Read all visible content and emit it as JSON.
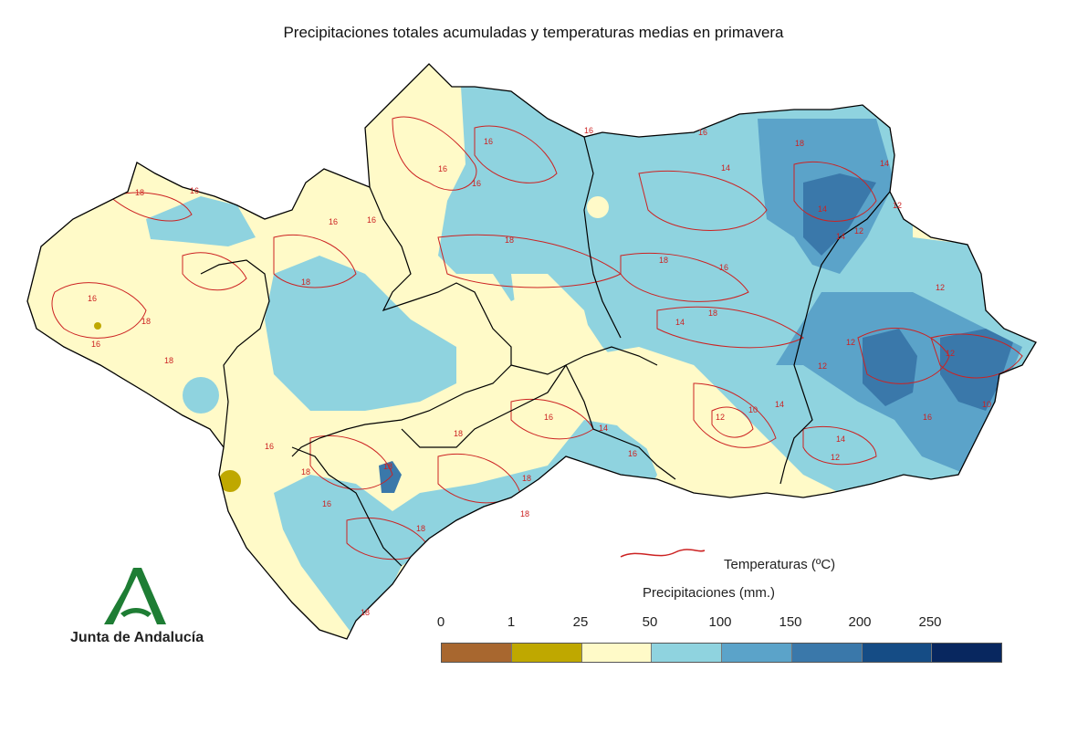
{
  "title": "Precipitaciones totales acumuladas y temperaturas medias en primavera",
  "legend": {
    "temperature_label": "Temperaturas (ºC)",
    "temperature_line_color": "#cc2222",
    "precipitation_label": "Precipitaciones (mm.)",
    "precipitation_ticks": [
      "0",
      "1",
      "25",
      "50",
      "100",
      "150",
      "200",
      "250"
    ],
    "precipitation_colors": [
      "#a8672f",
      "#bfa800",
      "#fffac8",
      "#8fd3df",
      "#5ba3c9",
      "#3a78aa",
      "#154c85",
      "#08275f"
    ]
  },
  "contour_labels": [
    "16",
    "16",
    "16",
    "18",
    "16",
    "16",
    "16",
    "16",
    "18",
    "16",
    "18",
    "18",
    "18",
    "18",
    "16",
    "14",
    "18",
    "14",
    "14",
    "14",
    "12",
    "12",
    "12",
    "12",
    "12",
    "10",
    "12",
    "14",
    "14",
    "16",
    "14",
    "12",
    "14",
    "12",
    "10",
    "18",
    "16",
    "18",
    "18",
    "18",
    "16",
    "18",
    "16",
    "18",
    "18",
    "16",
    "16",
    "16",
    "18"
  ],
  "logo": {
    "text": "Junta de Andalucía",
    "color": "#1e7d34"
  }
}
